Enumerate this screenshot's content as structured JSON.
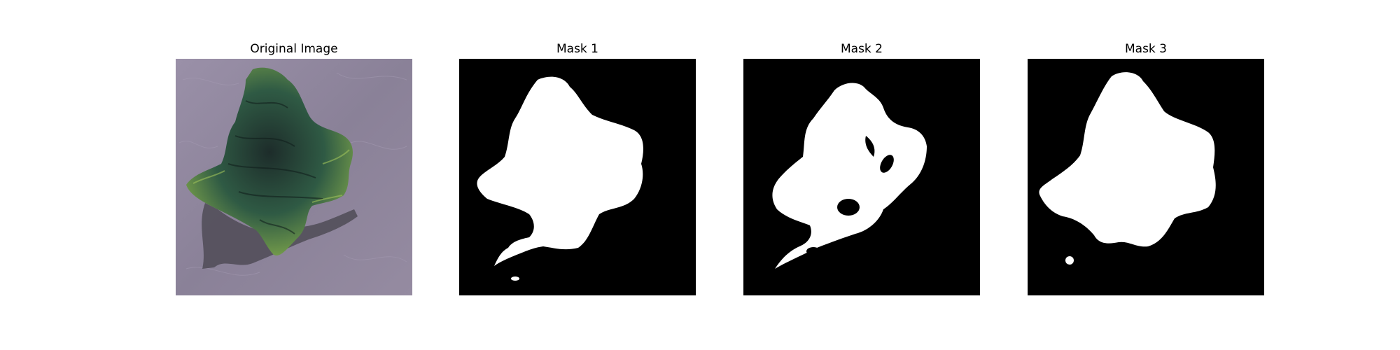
{
  "figure": {
    "panels": [
      {
        "title": "Original Image"
      },
      {
        "title": "Mask 1"
      },
      {
        "title": "Mask 2"
      },
      {
        "title": "Mask 3"
      }
    ]
  },
  "colors": {
    "background": "#ffffff",
    "mask_foreground": "#ffffff",
    "mask_background": "#000000",
    "photo_surface": "#8a8198",
    "leaf_dark": "#1f3a2a",
    "leaf_light": "#7aa14a",
    "shadow": "#4e4a54"
  }
}
